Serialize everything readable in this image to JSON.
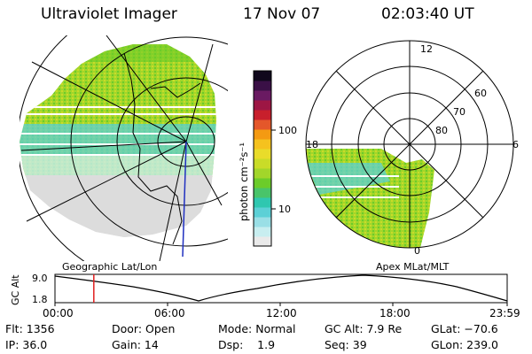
{
  "header": {
    "title": "Ultraviolet Imager",
    "date": "17 Nov 07",
    "time": "02:03:40 UT"
  },
  "colorbar": {
    "unit_label": "photon cm⁻²s⁻¹",
    "ticks": [
      "100",
      "10"
    ],
    "colors": [
      "#eaeaea",
      "#c8eef0",
      "#9adfe6",
      "#5cd0d6",
      "#2fc7b0",
      "#49c46a",
      "#6ccc2a",
      "#a2d62a",
      "#c9dc28",
      "#e9dc2a",
      "#f5c21e",
      "#f49a12",
      "#e4572a",
      "#c81f2c",
      "#9d1644",
      "#6a1a62",
      "#3a1046",
      "#10081c"
    ]
  },
  "geo_map": {
    "caption": "Geographic Lat/Lon"
  },
  "polar_plot": {
    "caption": "Apex MLat/MLT",
    "mlt_labels": {
      "top": "12",
      "left": "18",
      "right": "6",
      "bottom": "0"
    },
    "lat_labels": [
      "60",
      "70",
      "80"
    ]
  },
  "orbit_plot": {
    "ylabel": "GC Alt",
    "y_ticks": [
      "9.0",
      "1.8"
    ],
    "x_ticks": [
      "00:00",
      "06:00",
      "12:00",
      "18:00",
      "23:59"
    ],
    "current_time_marker_hours": 2.06,
    "marker_color": "#e02020"
  },
  "status": {
    "flt": "Flt: 1356",
    "ip": "IP: 36.0",
    "door": "Door: Open",
    "gain": "Gain: 14",
    "mode": "Mode: Normal",
    "dsp": "Dsp:    1.9",
    "gc_alt": "GC Alt: 7.9 Re",
    "seq": "Seq: 39",
    "glat": "GLat: −70.6",
    "glon": "GLon: 239.0"
  }
}
